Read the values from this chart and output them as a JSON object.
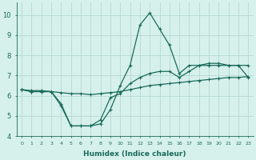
{
  "xlabel": "Humidex (Indice chaleur)",
  "background_color": "#d6f0ec",
  "grid_color": "#b5d9d3",
  "line_color": "#1a6b5a",
  "xlim": [
    -0.5,
    23.5
  ],
  "ylim": [
    4,
    10.6
  ],
  "yticks": [
    4,
    5,
    6,
    7,
    8,
    9,
    10
  ],
  "xticks": [
    0,
    1,
    2,
    3,
    4,
    5,
    6,
    7,
    8,
    9,
    10,
    11,
    12,
    13,
    14,
    15,
    16,
    17,
    18,
    19,
    20,
    21,
    22,
    23
  ],
  "line1_x": [
    0,
    1,
    2,
    3,
    4,
    5,
    6,
    7,
    8,
    9,
    10,
    11,
    12,
    13,
    14,
    15,
    16,
    17,
    18,
    19,
    20,
    21,
    22,
    23
  ],
  "line1_y": [
    6.3,
    6.2,
    6.2,
    6.2,
    5.6,
    4.5,
    4.5,
    4.5,
    4.6,
    5.3,
    6.5,
    7.5,
    9.5,
    10.1,
    9.3,
    8.5,
    7.1,
    7.5,
    7.5,
    7.6,
    7.6,
    7.5,
    7.5,
    7.5
  ],
  "line2_x": [
    0,
    1,
    2,
    3,
    4,
    5,
    6,
    7,
    8,
    9,
    10,
    11,
    12,
    13,
    14,
    15,
    16,
    17,
    18,
    19,
    20,
    21,
    22,
    23
  ],
  "line2_y": [
    6.3,
    6.2,
    6.2,
    6.2,
    5.5,
    4.5,
    4.5,
    4.5,
    4.8,
    5.9,
    6.1,
    6.6,
    6.9,
    7.1,
    7.2,
    7.2,
    6.9,
    7.2,
    7.5,
    7.5,
    7.5,
    7.5,
    7.5,
    6.9
  ],
  "line3_x": [
    0,
    1,
    2,
    3,
    4,
    5,
    6,
    7,
    8,
    9,
    10,
    11,
    12,
    13,
    14,
    15,
    16,
    17,
    18,
    19,
    20,
    21,
    22,
    23
  ],
  "line3_y": [
    6.3,
    6.25,
    6.25,
    6.2,
    6.15,
    6.1,
    6.1,
    6.05,
    6.1,
    6.15,
    6.2,
    6.3,
    6.4,
    6.5,
    6.55,
    6.6,
    6.65,
    6.7,
    6.75,
    6.8,
    6.85,
    6.9,
    6.9,
    6.95
  ]
}
